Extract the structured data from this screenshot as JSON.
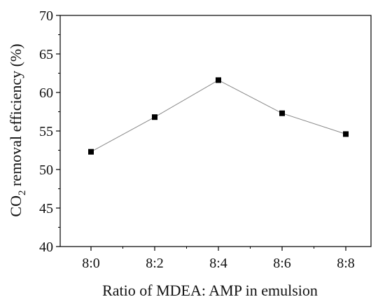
{
  "chart_data": {
    "type": "line",
    "categories": [
      "8:0",
      "8:2",
      "8:4",
      "8:6",
      "8:8"
    ],
    "values": [
      52.3,
      56.8,
      61.6,
      57.3,
      54.6
    ],
    "xlabel": "Ratio of MDEA: AMP in emulsion",
    "ylabel": {
      "prefix": "CO",
      "subscript": "2",
      "suffix": " removal efficiency (%)"
    },
    "ylim": [
      40,
      70
    ],
    "yticks": [
      "40",
      "45",
      "50",
      "55",
      "60",
      "65",
      "70"
    ],
    "grid": false,
    "marker": "square",
    "colors": {
      "line": "#888888",
      "marker": "#000000",
      "axis": "#000000"
    }
  }
}
